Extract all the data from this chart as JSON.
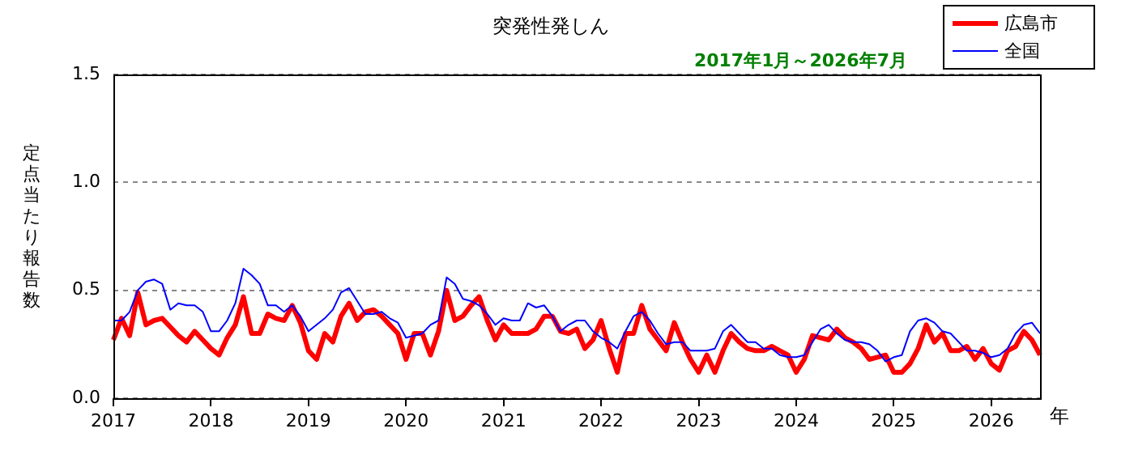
{
  "chart_data": {
    "type": "line",
    "title": "突発性発しん",
    "subtitle": "2017年1月～2026年7月",
    "xlabel": "年",
    "ylabel": "定点当たり報告数",
    "categories": [
      "2017",
      null,
      null,
      null,
      null,
      null,
      null,
      null,
      null,
      null,
      null,
      null,
      "2018",
      null,
      null,
      null,
      null,
      null,
      null,
      null,
      null,
      null,
      null,
      null,
      "2019",
      null,
      null,
      null,
      null,
      null,
      null,
      null,
      null,
      null,
      null,
      null,
      "2020",
      null,
      null,
      null,
      null,
      null,
      null,
      null,
      null,
      null,
      null,
      null,
      "2021",
      null,
      null,
      null,
      null,
      null,
      null,
      null,
      null,
      null,
      null,
      null,
      "2022",
      null,
      null,
      null,
      null,
      null,
      null,
      null,
      null,
      null,
      null,
      null,
      "2023",
      null,
      null,
      null,
      null,
      null,
      null,
      null,
      null,
      null,
      null,
      null,
      "2024",
      null,
      null,
      null,
      null,
      null,
      null,
      null,
      null,
      null,
      null,
      null,
      "2025",
      null,
      null,
      null,
      null,
      null,
      null,
      null,
      null,
      null,
      null,
      null,
      "2026",
      null,
      null,
      null,
      null,
      null,
      null
    ],
    "series": [
      {
        "name": "広島市",
        "color": "#ff0000",
        "values": [
          0.27,
          0.37,
          0.29,
          0.49,
          0.34,
          0.36,
          0.37,
          0.33,
          0.29,
          0.26,
          0.31,
          0.27,
          0.23,
          0.2,
          0.28,
          0.34,
          0.47,
          0.3,
          0.3,
          0.39,
          0.37,
          0.36,
          0.43,
          0.35,
          0.22,
          0.18,
          0.3,
          0.26,
          0.38,
          0.44,
          0.36,
          0.4,
          0.41,
          0.38,
          0.34,
          0.3,
          0.18,
          0.3,
          0.3,
          0.2,
          0.31,
          0.5,
          0.36,
          0.38,
          0.43,
          0.47,
          0.36,
          0.27,
          0.34,
          0.3,
          0.3,
          0.3,
          0.32,
          0.38,
          0.38,
          0.31,
          0.3,
          0.32,
          0.23,
          0.27,
          0.36,
          0.23,
          0.12,
          0.3,
          0.3,
          0.43,
          0.32,
          0.27,
          0.22,
          0.35,
          0.26,
          0.18,
          0.12,
          0.2,
          0.12,
          0.22,
          0.3,
          0.26,
          0.23,
          0.22,
          0.22,
          0.24,
          0.22,
          0.2,
          0.12,
          0.18,
          0.29,
          0.28,
          0.27,
          0.32,
          0.28,
          0.26,
          0.23,
          0.18,
          0.19,
          0.2,
          0.12,
          0.12,
          0.16,
          0.23,
          0.34,
          0.26,
          0.3,
          0.22,
          0.22,
          0.24,
          0.18,
          0.23,
          0.16,
          0.13,
          0.22,
          0.24,
          0.31,
          0.27,
          0.2
        ]
      },
      {
        "name": "全国",
        "color": "#0000ff",
        "values": [
          0.36,
          0.36,
          0.4,
          0.5,
          0.54,
          0.55,
          0.53,
          0.41,
          0.44,
          0.43,
          0.43,
          0.4,
          0.31,
          0.31,
          0.36,
          0.44,
          0.6,
          0.57,
          0.53,
          0.43,
          0.43,
          0.4,
          0.43,
          0.38,
          0.31,
          0.34,
          0.37,
          0.41,
          0.49,
          0.51,
          0.45,
          0.39,
          0.39,
          0.4,
          0.37,
          0.35,
          0.28,
          0.29,
          0.3,
          0.34,
          0.36,
          0.56,
          0.53,
          0.46,
          0.45,
          0.43,
          0.39,
          0.34,
          0.37,
          0.36,
          0.36,
          0.44,
          0.42,
          0.43,
          0.38,
          0.31,
          0.34,
          0.36,
          0.36,
          0.31,
          0.28,
          0.26,
          0.23,
          0.31,
          0.38,
          0.4,
          0.36,
          0.3,
          0.25,
          0.26,
          0.26,
          0.22,
          0.22,
          0.22,
          0.23,
          0.31,
          0.34,
          0.3,
          0.26,
          0.26,
          0.23,
          0.23,
          0.2,
          0.19,
          0.19,
          0.2,
          0.26,
          0.32,
          0.34,
          0.3,
          0.27,
          0.26,
          0.26,
          0.25,
          0.22,
          0.17,
          0.19,
          0.2,
          0.31,
          0.36,
          0.37,
          0.35,
          0.31,
          0.3,
          0.26,
          0.22,
          0.22,
          0.21,
          0.19,
          0.2,
          0.23,
          0.3,
          0.34,
          0.35,
          0.3
        ]
      }
    ],
    "ylim": [
      0,
      1.5
    ],
    "yticks": [
      {
        "value": 0,
        "label": "0.0"
      },
      {
        "value": 0.5,
        "label": "0.5"
      },
      {
        "value": 1,
        "label": "1.0"
      },
      {
        "value": 1.5,
        "label": "1.5"
      }
    ],
    "grid": "y",
    "legend": "top right",
    "marker": "none",
    "line_style": "solid"
  }
}
